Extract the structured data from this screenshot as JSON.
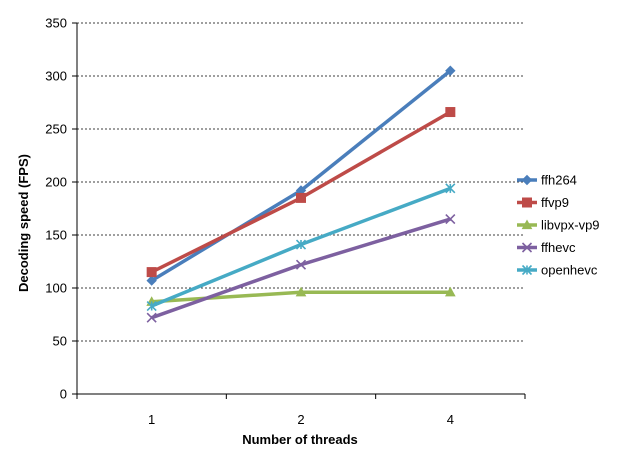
{
  "chart_data": {
    "type": "line",
    "categories": [
      "1",
      "2",
      "4"
    ],
    "series": [
      {
        "name": "ffh264",
        "color": "#4a7ebb",
        "marker": "diamond",
        "values": [
          107,
          192,
          305
        ]
      },
      {
        "name": "ffvp9",
        "color": "#be4b48",
        "marker": "square",
        "values": [
          115,
          185,
          266
        ]
      },
      {
        "name": "libvpx-vp9",
        "color": "#98b954",
        "marker": "triangle",
        "values": [
          87,
          96,
          96
        ]
      },
      {
        "name": "ffhevc",
        "color": "#7d60a0",
        "marker": "x",
        "values": [
          72,
          122,
          165
        ]
      },
      {
        "name": "openhevc",
        "color": "#46aac5",
        "marker": "star",
        "values": [
          83,
          141,
          194
        ]
      }
    ],
    "xlabel": "Number of threads",
    "ylabel": "Decoding speed (FPS)",
    "ylim": [
      0,
      350
    ],
    "yticks": [
      0,
      50,
      100,
      150,
      200,
      250,
      300,
      350
    ],
    "grid": true,
    "legend": "right"
  }
}
